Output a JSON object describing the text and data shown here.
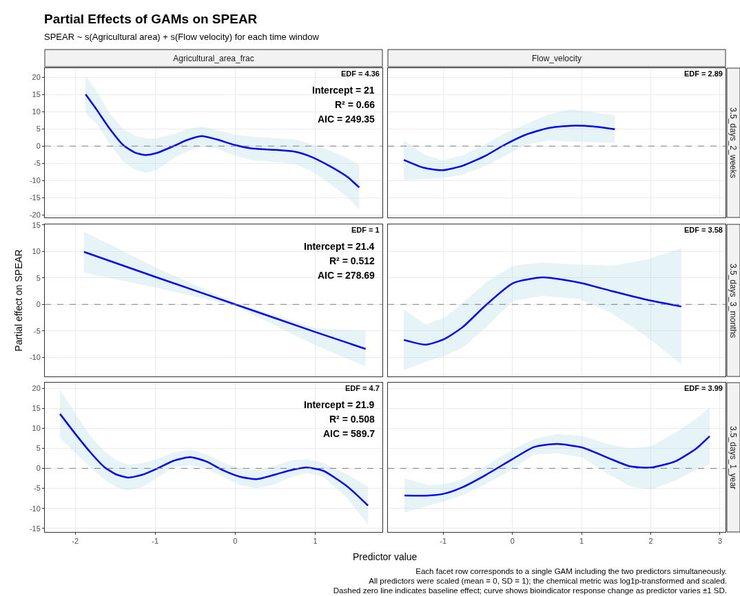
{
  "chart_data": [
    {
      "type": "other",
      "title": "Partial Effects of GAMs on SPEAR",
      "subtitle": "SPEAR ~ s(Agricultural area) + s(Flow velocity) for each time window",
      "annotations": [
        "Each facet row corresponds to a single GAM including the two predictors simultaneously.",
        "All predictors were scaled (mean = 0, SD = 1); the chemical metric was log1p-transformed and scaled.",
        "Dashed zero line indicates baseline effect; curve shows bioindicator response change as predictor varies ±1 SD."
      ]
    },
    {
      "type": "line",
      "title": "Agricultural_area_frac",
      "tick_labels": "y",
      "grid": true,
      "xlim": [
        -2.38,
        1.84
      ],
      "xticks": [
        -2,
        -1,
        0,
        1
      ],
      "ylim": [
        -20.7,
        22.6
      ],
      "yticks": [
        -20,
        -15,
        -10,
        -5,
        0,
        5,
        10,
        15,
        20
      ],
      "ref_lines": [
        {
          "axis": "y",
          "value": 0,
          "color": "#808080",
          "line_style": "dashed"
        }
      ],
      "annotations": [
        "EDF = 4.36",
        "Intercept = 21",
        "R² = 0.66",
        "AIC = 249.35"
      ],
      "series": [
        {
          "color": "#0000ff",
          "x": [
            -1.87,
            -1.73,
            -1.58,
            -1.4,
            -1.25,
            -1.12,
            -0.98,
            -0.74,
            -0.62,
            -0.42,
            -0.24,
            0,
            0.21,
            0.51,
            0.74,
            0.95,
            1.19,
            1.4,
            1.55
          ],
          "values": [
            15,
            10.5,
            5.4,
            0.3,
            -1.9,
            -2.6,
            -2,
            0.3,
            1.6,
            2.9,
            2,
            0.3,
            -0.7,
            -1.1,
            -1.6,
            -3.1,
            -5.9,
            -8.9,
            -12
          ],
          "lower": [
            9.6,
            6.4,
            1,
            -4.5,
            -6.9,
            -7.8,
            -6.9,
            -3.1,
            -1.8,
            -0.1,
            -0.7,
            -2.8,
            -4.1,
            -4.6,
            -5.2,
            -7.2,
            -11,
            -14.7,
            -18.4
          ],
          "upper": [
            20.5,
            15.9,
            9.8,
            5,
            3,
            2.3,
            2.2,
            3.7,
            4.7,
            5.7,
            4.7,
            3.3,
            2.7,
            2.3,
            2,
            0.6,
            -1.4,
            -3.5,
            -5.5
          ]
        }
      ]
    },
    {
      "type": "line",
      "title": "Flow_velocity",
      "tick_labels": false,
      "grid": true,
      "xlim": [
        -1.8,
        3.08
      ],
      "xticks": [
        -1,
        0,
        1,
        2,
        3
      ],
      "ylim": [
        -20.7,
        22.6
      ],
      "yticks": [
        -20,
        -15,
        -10,
        -5,
        0,
        5,
        10,
        15,
        20
      ],
      "ref_lines": [
        {
          "axis": "y",
          "value": 0,
          "color": "#808080",
          "line_style": "dashed"
        }
      ],
      "annotations": [
        "EDF = 2.89",
        "3.5_days_2_weeks"
      ],
      "series": [
        {
          "color": "#0000ff",
          "x": [
            -1.57,
            -1.28,
            -1.01,
            -0.72,
            -0.38,
            -0.12,
            0.18,
            0.51,
            0.84,
            1.17,
            1.48
          ],
          "values": [
            -4,
            -6.3,
            -7,
            -5.7,
            -2.7,
            0.3,
            3.2,
            5.2,
            5.9,
            5.7,
            4.9
          ],
          "lower": [
            -9.9,
            -9.6,
            -9.3,
            -8.3,
            -5.7,
            -3,
            0.3,
            1.6,
            1.3,
            1.1,
            0.9
          ],
          "upper": [
            1.6,
            -2.4,
            -4.2,
            -2.7,
            0.6,
            3.6,
            6.2,
            9.1,
            10.7,
            9.8,
            8.9
          ]
        }
      ]
    },
    {
      "type": "line",
      "ylabel": "Partial effect on SPEAR",
      "tick_labels": "y",
      "grid": true,
      "xlim": [
        -2.38,
        1.84
      ],
      "xticks": [
        -2,
        -1,
        0,
        1
      ],
      "ylim": [
        -13.6,
        15.1
      ],
      "yticks": [
        -10,
        -5,
        0,
        5,
        10,
        15
      ],
      "ref_lines": [
        {
          "axis": "y",
          "value": 0,
          "color": "#808080",
          "line_style": "dashed"
        }
      ],
      "annotations": [
        "EDF = 1",
        "Intercept = 21.4",
        "R² = 0.512",
        "AIC = 278.69"
      ],
      "series": [
        {
          "color": "#0000ff",
          "x": [
            -1.89,
            -1,
            0,
            1,
            1.63
          ],
          "values": [
            9.9,
            5.2,
            0,
            -5.2,
            -8.4
          ],
          "lower": [
            6,
            3.2,
            -0.3,
            -7.7,
            -11.7
          ],
          "upper": [
            13.7,
            7,
            0.3,
            -4.5,
            -5
          ]
        }
      ]
    },
    {
      "type": "line",
      "tick_labels": false,
      "grid": true,
      "xlim": [
        -1.8,
        3.08
      ],
      "xticks": [
        -1,
        0,
        1,
        2,
        3
      ],
      "ylim": [
        -13.6,
        15.1
      ],
      "yticks": [
        -10,
        -5,
        0,
        5,
        10,
        15
      ],
      "ref_lines": [
        {
          "axis": "y",
          "value": 0,
          "color": "#808080",
          "line_style": "dashed"
        }
      ],
      "annotations": [
        "EDF = 3.58",
        "3.5_days_3_months"
      ],
      "series": [
        {
          "color": "#0000ff",
          "x": [
            -1.57,
            -1.25,
            -0.98,
            -0.72,
            -0.38,
            0.01,
            0.44,
            0.97,
            1.44,
            1.93,
            2.44
          ],
          "values": [
            -6.7,
            -7.6,
            -6.5,
            -4.3,
            -0.1,
            4,
            5.1,
            4.1,
            2.5,
            0.9,
            -0.4
          ],
          "lower": [
            -12.4,
            -10.8,
            -9.7,
            -8.2,
            -4.3,
            0.7,
            1.6,
            1,
            -1.7,
            -6,
            -11.3
          ],
          "upper": [
            -1,
            -3.8,
            -2.5,
            0.3,
            4.2,
            7.3,
            7.9,
            7.5,
            7.3,
            8.4,
            10.6
          ]
        }
      ]
    },
    {
      "type": "line",
      "xlabel": "Predictor value",
      "grid": true,
      "xlim": [
        -2.38,
        1.84
      ],
      "xticks": [
        -2,
        -1,
        0,
        1
      ],
      "ylim": [
        -15.9,
        21.4
      ],
      "yticks": [
        -15,
        -10,
        -5,
        0,
        5,
        10,
        15,
        20
      ],
      "ref_lines": [
        {
          "axis": "y",
          "value": 0,
          "color": "#808080",
          "line_style": "dashed"
        }
      ],
      "annotations": [
        "EDF = 4.7",
        "Intercept = 21.9",
        "R² = 0.508",
        "AIC = 589.7"
      ],
      "series": [
        {
          "color": "#0000ff",
          "x": [
            -2.19,
            -1.99,
            -1.81,
            -1.64,
            -1.49,
            -1.34,
            -1.16,
            -0.98,
            -0.77,
            -0.56,
            -0.36,
            -0.15,
            0.06,
            0.27,
            0.51,
            0.71,
            0.89,
            1.1,
            1.4,
            1.66
          ],
          "values": [
            13.6,
            8.4,
            4,
            0.4,
            -1.5,
            -2.3,
            -1.6,
            -0.1,
            1.9,
            2.8,
            1.7,
            -0.5,
            -2.1,
            -2.7,
            -1.5,
            -0.4,
            0.2,
            -0.6,
            -4.5,
            -9.3
          ],
          "lower": [
            7.6,
            3.7,
            0.2,
            -2.7,
            -4.7,
            -5.6,
            -4.7,
            -2.4,
            0.2,
            0.8,
            -0.1,
            -2.1,
            -4.2,
            -5,
            -3.9,
            -2.1,
            -1.2,
            -2.1,
            -7.4,
            -14.1
          ],
          "upper": [
            19.6,
            13.4,
            8.1,
            4.3,
            2,
            0.9,
            1.3,
            2.3,
            4,
            4.7,
            3.5,
            1.4,
            -0.1,
            -0.5,
            0.8,
            2,
            2.3,
            1.4,
            -1.5,
            -4.6
          ]
        }
      ]
    },
    {
      "type": "line",
      "tick_labels": "x",
      "grid": true,
      "xlim": [
        -1.8,
        3.08
      ],
      "xticks": [
        -1,
        0,
        1,
        2,
        3
      ],
      "ylim": [
        -15.9,
        21.4
      ],
      "yticks": [
        -15,
        -10,
        -5,
        0,
        5,
        10,
        15,
        20
      ],
      "ref_lines": [
        {
          "axis": "y",
          "value": 0,
          "color": "#808080",
          "line_style": "dashed"
        }
      ],
      "annotations": [
        "EDF = 3.99",
        "3.5_days_1_year"
      ],
      "series": [
        {
          "color": "#0000ff",
          "x": [
            -1.56,
            -1.21,
            -0.98,
            -0.72,
            -0.38,
            0,
            0.31,
            0.64,
            1.01,
            1.37,
            1.7,
            2,
            2.36,
            2.66,
            2.85
          ],
          "values": [
            -6.8,
            -6.8,
            -6.3,
            -4.7,
            -1.6,
            2.3,
            5.3,
            6.1,
            5.2,
            2.7,
            0.5,
            0.2,
            1.8,
            5,
            8
          ],
          "lower": [
            -11.1,
            -9.3,
            -8.2,
            -6.7,
            -3.9,
            -0.2,
            3.4,
            3.8,
            2.7,
            -1.3,
            -4.5,
            -5.3,
            -3,
            -0.2,
            1
          ],
          "upper": [
            -2.5,
            -4.2,
            -3.9,
            -2.7,
            0.7,
            4.7,
            7.3,
            8.5,
            8.1,
            6.1,
            5,
            5.5,
            9,
            12.4,
            15.3
          ]
        }
      ]
    }
  ]
}
